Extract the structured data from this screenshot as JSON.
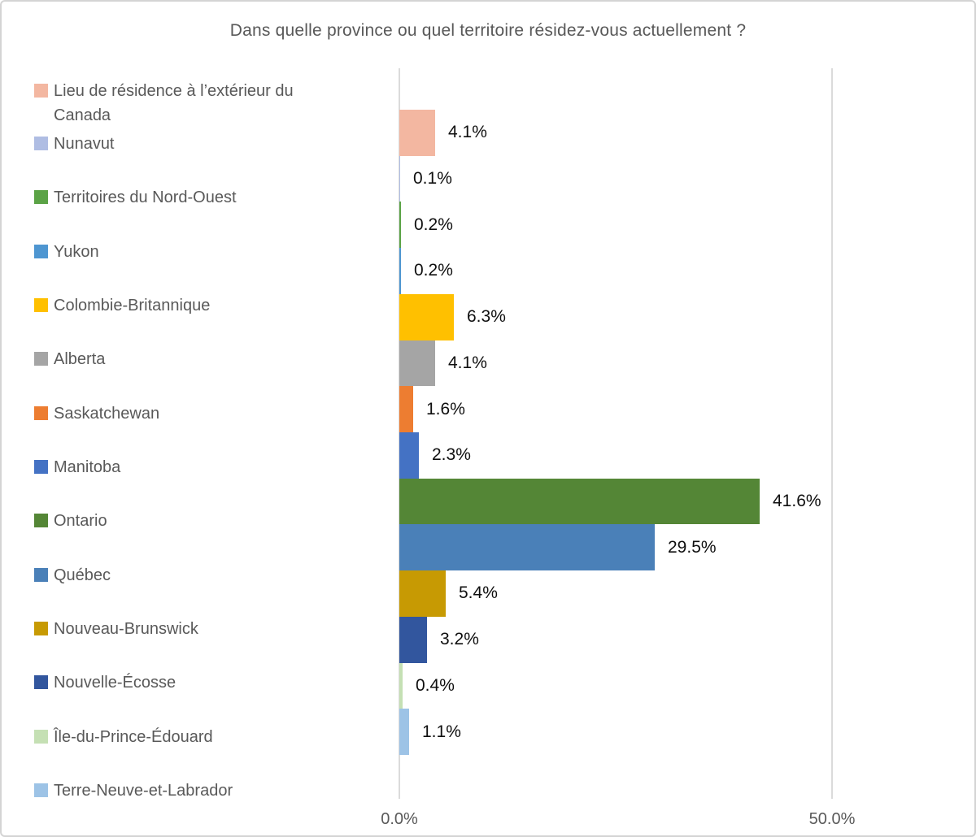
{
  "title": "Dans quelle province ou quel territoire résidez-vous actuellement ?",
  "colors": {
    "title_text": "#595959",
    "legend_text": "#595959",
    "data_label_text": "#0f0f0f",
    "axis_text": "#595959",
    "gridline": "#dbdbdb",
    "frame_border": "#d4d4d4",
    "background": "#ffffff"
  },
  "chart_data": {
    "type": "bar",
    "orientation": "horizontal",
    "title": "Dans quelle province ou quel territoire résidez-vous actuellement ?",
    "categories": [
      "Lieu de résidence à l’extérieur du Canada",
      "Nunavut",
      "Territoires du Nord-Ouest",
      "Yukon",
      "Colombie-Britannique",
      "Alberta",
      "Saskatchewan",
      "Manitoba",
      "Ontario",
      "Québec",
      "Nouveau-Brunswick",
      "Nouvelle-Écosse",
      "Île-du-Prince-Édouard",
      "Terre-Neuve-et-Labrador"
    ],
    "values": [
      4.1,
      0.1,
      0.2,
      0.2,
      6.3,
      4.1,
      1.6,
      2.3,
      41.6,
      29.5,
      5.4,
      3.2,
      0.4,
      1.1
    ],
    "data_labels": [
      "4.1%",
      "0.1%",
      "0.2%",
      "0.2%",
      "6.3%",
      "4.1%",
      "1.6%",
      "2.3%",
      "41.6%",
      "29.5%",
      "5.4%",
      "3.2%",
      "0.4%",
      "1.1%"
    ],
    "bar_colors": [
      "#f3b7a1",
      "#afbde3",
      "#5ba346",
      "#4e96d1",
      "#ffc000",
      "#a5a5a5",
      "#ed7d31",
      "#4472c4",
      "#548636",
      "#4a80b8",
      "#c79a03",
      "#32569e",
      "#c5e0b4",
      "#9dc3e6"
    ],
    "xlim": [
      0,
      50
    ],
    "x_tick_labels": [
      "0.0%",
      "50.0%"
    ],
    "grid": "vertical gridlines at 0% and 50% only, no axis line",
    "legend_position": "left",
    "data_label_position": "outside-end"
  }
}
